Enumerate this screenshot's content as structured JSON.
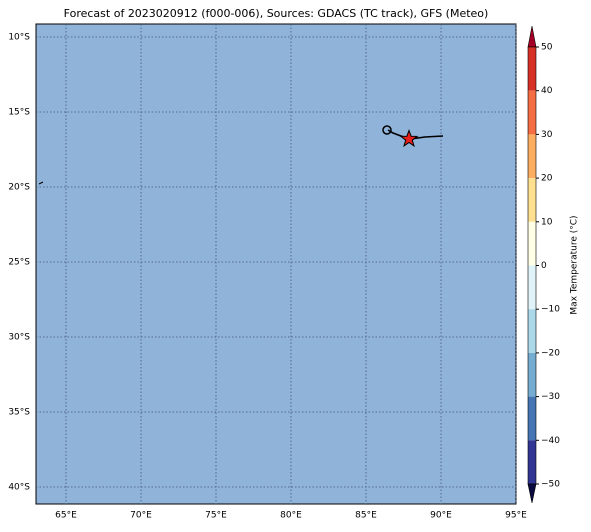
{
  "title": "Forecast of 2023020912 (f000-006), Sources: GDACS (TC track), GFS (Meteo)",
  "map": {
    "lat_labels": [
      "10°S",
      "15°S",
      "20°S",
      "25°S",
      "30°S",
      "35°S",
      "40°S"
    ],
    "lon_labels": [
      "65°E",
      "70°E",
      "75°E",
      "80°E",
      "85°E",
      "90°E",
      "95°E"
    ]
  },
  "colorbar": {
    "label": "Max Temperature (°C)",
    "tick_labels": [
      "50",
      "40",
      "30",
      "20",
      "10",
      "0",
      "−10",
      "−20",
      "−30",
      "−40",
      "−50"
    ]
  }
}
